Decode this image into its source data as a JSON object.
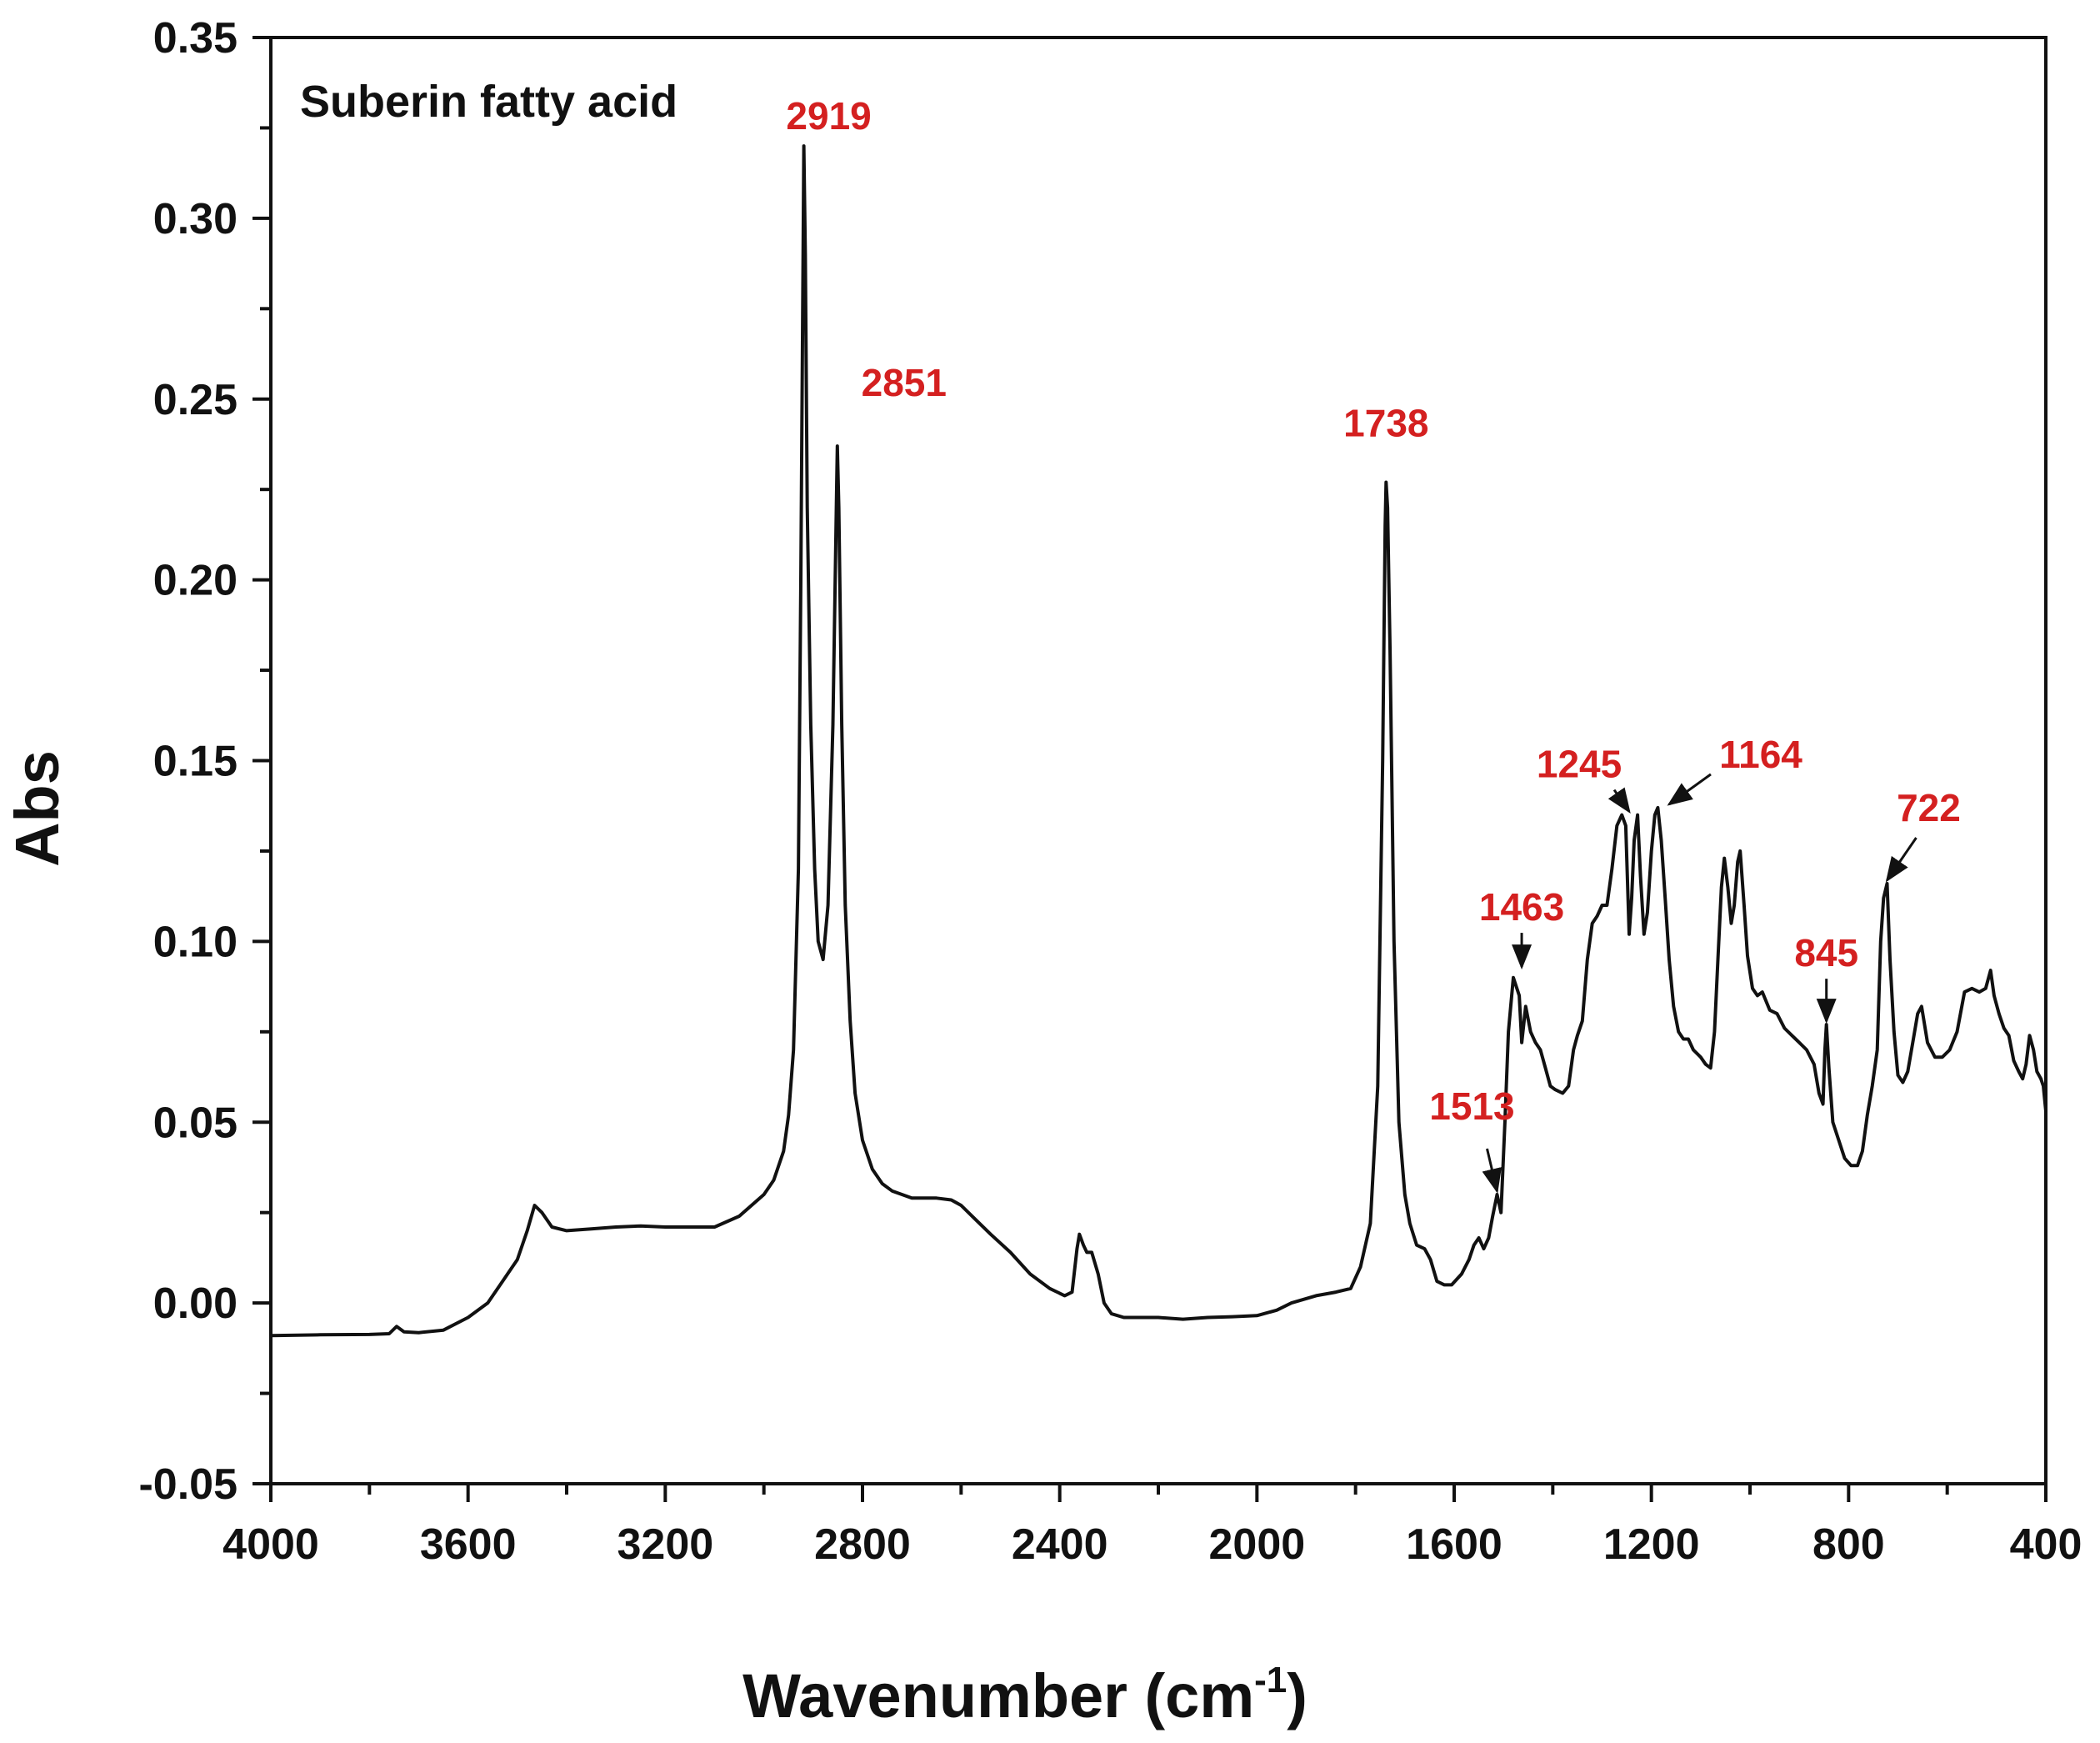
{
  "chart_data": {
    "type": "line",
    "title": "Suberin fatty acid",
    "xlabel": "Wavenumber (cm",
    "xlabel_sup": "-1",
    "xlabel_close": ")",
    "ylabel": "Abs",
    "xlim": [
      4000,
      400
    ],
    "ylim": [
      -0.05,
      0.35
    ],
    "x_ticks": [
      4000,
      3600,
      3200,
      2800,
      2400,
      2000,
      1600,
      1200,
      800,
      400
    ],
    "x_tick_labels": [
      "4000",
      "3600",
      "3200",
      "2800",
      "2400",
      "2000",
      "1600",
      "1200",
      "800",
      "400"
    ],
    "y_ticks": [
      -0.05,
      0.0,
      0.05,
      0.1,
      0.15,
      0.2,
      0.25,
      0.3,
      0.35
    ],
    "y_tick_labels": [
      "-0.05",
      "0.00",
      "0.05",
      "0.10",
      "0.15",
      "0.20",
      "0.25",
      "0.30",
      "0.35"
    ],
    "grid": false,
    "line_color": "#111111",
    "label_color": "#d42020",
    "series": [
      {
        "name": "Suberin fatty acid",
        "points": [
          [
            4000,
            -0.009
          ],
          [
            3900,
            -0.0088
          ],
          [
            3800,
            -0.0087
          ],
          [
            3760,
            -0.0085
          ],
          [
            3745,
            -0.0065
          ],
          [
            3730,
            -0.008
          ],
          [
            3700,
            -0.0082
          ],
          [
            3650,
            -0.0075
          ],
          [
            3600,
            -0.004
          ],
          [
            3560,
            0.0
          ],
          [
            3530,
            0.006
          ],
          [
            3500,
            0.012
          ],
          [
            3480,
            0.02
          ],
          [
            3465,
            0.027
          ],
          [
            3450,
            0.025
          ],
          [
            3430,
            0.021
          ],
          [
            3400,
            0.02
          ],
          [
            3350,
            0.0205
          ],
          [
            3300,
            0.021
          ],
          [
            3250,
            0.0213
          ],
          [
            3200,
            0.021
          ],
          [
            3150,
            0.021
          ],
          [
            3100,
            0.021
          ],
          [
            3050,
            0.024
          ],
          [
            3000,
            0.03
          ],
          [
            2980,
            0.034
          ],
          [
            2960,
            0.042
          ],
          [
            2950,
            0.052
          ],
          [
            2940,
            0.07
          ],
          [
            2930,
            0.12
          ],
          [
            2925,
            0.2
          ],
          [
            2921,
            0.28
          ],
          [
            2919,
            0.32
          ],
          [
            2916,
            0.29
          ],
          [
            2912,
            0.22
          ],
          [
            2905,
            0.16
          ],
          [
            2897,
            0.12
          ],
          [
            2890,
            0.1
          ],
          [
            2880,
            0.095
          ],
          [
            2870,
            0.11
          ],
          [
            2860,
            0.16
          ],
          [
            2853,
            0.22
          ],
          [
            2851,
            0.237
          ],
          [
            2848,
            0.22
          ],
          [
            2842,
            0.16
          ],
          [
            2835,
            0.11
          ],
          [
            2825,
            0.078
          ],
          [
            2815,
            0.058
          ],
          [
            2800,
            0.045
          ],
          [
            2780,
            0.037
          ],
          [
            2760,
            0.033
          ],
          [
            2740,
            0.031
          ],
          [
            2700,
            0.029
          ],
          [
            2650,
            0.029
          ],
          [
            2620,
            0.0285
          ],
          [
            2600,
            0.027
          ],
          [
            2570,
            0.023
          ],
          [
            2540,
            0.019
          ],
          [
            2500,
            0.014
          ],
          [
            2460,
            0.008
          ],
          [
            2420,
            0.004
          ],
          [
            2390,
            0.002
          ],
          [
            2375,
            0.003
          ],
          [
            2365,
            0.015
          ],
          [
            2360,
            0.019
          ],
          [
            2352,
            0.016
          ],
          [
            2345,
            0.014
          ],
          [
            2335,
            0.014
          ],
          [
            2322,
            0.008
          ],
          [
            2310,
            0.0
          ],
          [
            2295,
            -0.003
          ],
          [
            2270,
            -0.004
          ],
          [
            2200,
            -0.004
          ],
          [
            2150,
            -0.0045
          ],
          [
            2100,
            -0.004
          ],
          [
            2050,
            -0.0038
          ],
          [
            2000,
            -0.0035
          ],
          [
            1960,
            -0.002
          ],
          [
            1930,
            0.0
          ],
          [
            1880,
            0.002
          ],
          [
            1840,
            0.003
          ],
          [
            1810,
            0.004
          ],
          [
            1790,
            0.01
          ],
          [
            1770,
            0.022
          ],
          [
            1755,
            0.06
          ],
          [
            1745,
            0.15
          ],
          [
            1740,
            0.215
          ],
          [
            1738,
            0.227
          ],
          [
            1735,
            0.22
          ],
          [
            1730,
            0.18
          ],
          [
            1722,
            0.1
          ],
          [
            1712,
            0.05
          ],
          [
            1700,
            0.03
          ],
          [
            1690,
            0.022
          ],
          [
            1676,
            0.016
          ],
          [
            1660,
            0.015
          ],
          [
            1648,
            0.012
          ],
          [
            1635,
            0.006
          ],
          [
            1620,
            0.005
          ],
          [
            1605,
            0.005
          ],
          [
            1585,
            0.008
          ],
          [
            1570,
            0.012
          ],
          [
            1560,
            0.016
          ],
          [
            1550,
            0.018
          ],
          [
            1540,
            0.015
          ],
          [
            1530,
            0.018
          ],
          [
            1522,
            0.024
          ],
          [
            1513,
            0.03
          ],
          [
            1505,
            0.025
          ],
          [
            1497,
            0.05
          ],
          [
            1490,
            0.075
          ],
          [
            1480,
            0.09
          ],
          [
            1468,
            0.085
          ],
          [
            1463,
            0.072
          ],
          [
            1455,
            0.082
          ],
          [
            1445,
            0.075
          ],
          [
            1435,
            0.072
          ],
          [
            1425,
            0.07
          ],
          [
            1415,
            0.065
          ],
          [
            1405,
            0.06
          ],
          [
            1395,
            0.059
          ],
          [
            1380,
            0.058
          ],
          [
            1368,
            0.06
          ],
          [
            1358,
            0.07
          ],
          [
            1350,
            0.074
          ],
          [
            1340,
            0.078
          ],
          [
            1330,
            0.095
          ],
          [
            1320,
            0.105
          ],
          [
            1310,
            0.107
          ],
          [
            1300,
            0.11
          ],
          [
            1290,
            0.11
          ],
          [
            1280,
            0.12
          ],
          [
            1270,
            0.132
          ],
          [
            1260,
            0.135
          ],
          [
            1252,
            0.132
          ],
          [
            1245,
            0.102
          ],
          [
            1240,
            0.112
          ],
          [
            1235,
            0.128
          ],
          [
            1228,
            0.135
          ],
          [
            1222,
            0.118
          ],
          [
            1215,
            0.102
          ],
          [
            1208,
            0.108
          ],
          [
            1200,
            0.125
          ],
          [
            1193,
            0.135
          ],
          [
            1187,
            0.137
          ],
          [
            1180,
            0.128
          ],
          [
            1172,
            0.112
          ],
          [
            1164,
            0.095
          ],
          [
            1155,
            0.082
          ],
          [
            1145,
            0.075
          ],
          [
            1135,
            0.073
          ],
          [
            1125,
            0.073
          ],
          [
            1115,
            0.07
          ],
          [
            1100,
            0.068
          ],
          [
            1090,
            0.066
          ],
          [
            1080,
            0.065
          ],
          [
            1072,
            0.075
          ],
          [
            1065,
            0.095
          ],
          [
            1058,
            0.115
          ],
          [
            1052,
            0.123
          ],
          [
            1045,
            0.115
          ],
          [
            1038,
            0.105
          ],
          [
            1032,
            0.11
          ],
          [
            1025,
            0.122
          ],
          [
            1020,
            0.125
          ],
          [
            1012,
            0.11
          ],
          [
            1005,
            0.096
          ],
          [
            995,
            0.087
          ],
          [
            985,
            0.085
          ],
          [
            975,
            0.086
          ],
          [
            960,
            0.081
          ],
          [
            945,
            0.08
          ],
          [
            930,
            0.076
          ],
          [
            915,
            0.074
          ],
          [
            900,
            0.072
          ],
          [
            885,
            0.07
          ],
          [
            870,
            0.066
          ],
          [
            860,
            0.058
          ],
          [
            852,
            0.055
          ],
          [
            848,
            0.07
          ],
          [
            845,
            0.077
          ],
          [
            840,
            0.065
          ],
          [
            832,
            0.05
          ],
          [
            820,
            0.045
          ],
          [
            808,
            0.04
          ],
          [
            795,
            0.038
          ],
          [
            782,
            0.038
          ],
          [
            772,
            0.042
          ],
          [
            762,
            0.052
          ],
          [
            752,
            0.06
          ],
          [
            742,
            0.07
          ],
          [
            735,
            0.1
          ],
          [
            729,
            0.112
          ],
          [
            722,
            0.116
          ],
          [
            716,
            0.095
          ],
          [
            708,
            0.075
          ],
          [
            700,
            0.063
          ],
          [
            690,
            0.061
          ],
          [
            680,
            0.064
          ],
          [
            670,
            0.072
          ],
          [
            660,
            0.08
          ],
          [
            652,
            0.082
          ],
          [
            640,
            0.072
          ],
          [
            625,
            0.068
          ],
          [
            610,
            0.068
          ],
          [
            595,
            0.07
          ],
          [
            580,
            0.075
          ],
          [
            565,
            0.086
          ],
          [
            550,
            0.087
          ],
          [
            535,
            0.086
          ],
          [
            522,
            0.087
          ],
          [
            512,
            0.092
          ],
          [
            505,
            0.085
          ],
          [
            495,
            0.08
          ],
          [
            485,
            0.076
          ],
          [
            475,
            0.074
          ],
          [
            465,
            0.067
          ],
          [
            455,
            0.064
          ],
          [
            447,
            0.062
          ],
          [
            440,
            0.066
          ],
          [
            433,
            0.074
          ],
          [
            425,
            0.07
          ],
          [
            418,
            0.064
          ],
          [
            410,
            0.062
          ],
          [
            405,
            0.06
          ],
          [
            400,
            0.053
          ]
        ]
      }
    ],
    "annotations": [
      {
        "text": "2919",
        "x": 2919,
        "y": 0.32,
        "arrow": false
      },
      {
        "text": "2851",
        "x": 2851,
        "y": 0.237,
        "arrow": false
      },
      {
        "text": "1738",
        "x": 1738,
        "y": 0.227,
        "arrow": false
      },
      {
        "text": "1513",
        "x": 1513,
        "y": 0.03,
        "arrow": true
      },
      {
        "text": "1463",
        "x": 1463,
        "y": 0.092,
        "arrow": true
      },
      {
        "text": "1245",
        "x": 1245,
        "y": 0.135,
        "arrow": true
      },
      {
        "text": "1164",
        "x": 1164,
        "y": 0.137,
        "arrow": true
      },
      {
        "text": "845",
        "x": 845,
        "y": 0.077,
        "arrow": true
      },
      {
        "text": "722",
        "x": 722,
        "y": 0.116,
        "arrow": true
      }
    ]
  }
}
